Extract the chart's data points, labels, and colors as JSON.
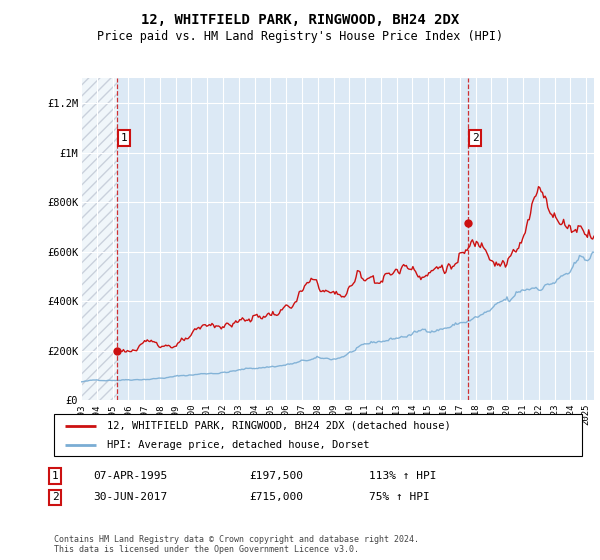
{
  "title": "12, WHITFIELD PARK, RINGWOOD, BH24 2DX",
  "subtitle": "Price paid vs. HM Land Registry's House Price Index (HPI)",
  "legend_line1": "12, WHITFIELD PARK, RINGWOOD, BH24 2DX (detached house)",
  "legend_line2": "HPI: Average price, detached house, Dorset",
  "annotation1_label": "1",
  "annotation1_date": "07-APR-1995",
  "annotation1_price": "£197,500",
  "annotation1_hpi": "113% ↑ HPI",
  "annotation1_year": 1995.27,
  "annotation1_value": 197500,
  "annotation2_label": "2",
  "annotation2_date": "30-JUN-2017",
  "annotation2_price": "£715,000",
  "annotation2_hpi": "75% ↑ HPI",
  "annotation2_year": 2017.5,
  "annotation2_value": 715000,
  "hpi_color": "#7aadd4",
  "price_color": "#cc1111",
  "background_color": "#ffffff",
  "plot_bg_color": "#dce9f5",
  "grid_color": "#ffffff",
  "hatch_color": "#b0b8c8",
  "ylim": [
    0,
    1300000
  ],
  "xlim_start": 1993.0,
  "xlim_end": 2025.5,
  "footer": "Contains HM Land Registry data © Crown copyright and database right 2024.\nThis data is licensed under the Open Government Licence v3.0.",
  "yticks": [
    0,
    200000,
    400000,
    600000,
    800000,
    1000000,
    1200000
  ],
  "ytick_labels": [
    "£0",
    "£200K",
    "£400K",
    "£600K",
    "£800K",
    "£1M",
    "£1.2M"
  ],
  "xtick_years": [
    1993,
    1994,
    1995,
    1996,
    1997,
    1998,
    1999,
    2000,
    2001,
    2002,
    2003,
    2004,
    2005,
    2006,
    2007,
    2008,
    2009,
    2010,
    2011,
    2012,
    2013,
    2014,
    2015,
    2016,
    2017,
    2018,
    2019,
    2020,
    2021,
    2022,
    2023,
    2024,
    2025
  ]
}
